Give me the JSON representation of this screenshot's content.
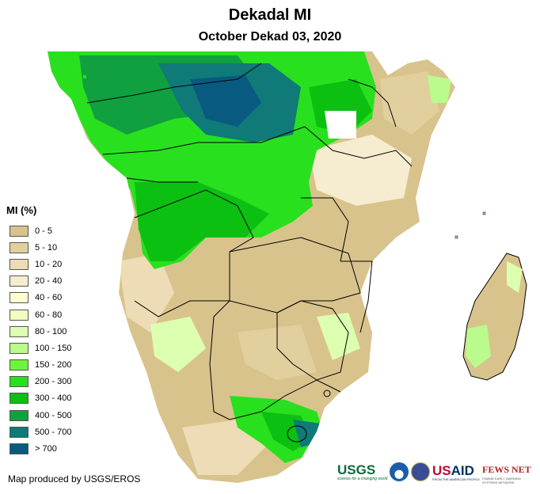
{
  "header": {
    "title": "Dekadal MI",
    "subtitle": "October Dekad 03, 2020"
  },
  "legend": {
    "title": "MI (%)",
    "items": [
      {
        "label": "0 - 5",
        "color": "#d9c38d"
      },
      {
        "label": "5 - 10",
        "color": "#e1cf9e"
      },
      {
        "label": "10 - 20",
        "color": "#eddcb5"
      },
      {
        "label": "20 - 40",
        "color": "#f6eccf"
      },
      {
        "label": "40 - 60",
        "color": "#ffffd0"
      },
      {
        "label": "60 - 80",
        "color": "#f1ffc0"
      },
      {
        "label": "80 - 100",
        "color": "#dcffb0"
      },
      {
        "label": "100 - 150",
        "color": "#b9fb8c"
      },
      {
        "label": "150 - 200",
        "color": "#6ff43c"
      },
      {
        "label": "200 - 300",
        "color": "#29e01e"
      },
      {
        "label": "300 - 400",
        "color": "#0cc012"
      },
      {
        "label": "400 - 500",
        "color": "#10a040"
      },
      {
        "label": "500 - 700",
        "color": "#0f7a78"
      },
      {
        "label": "> 700",
        "color": "#085a80"
      }
    ]
  },
  "footer": {
    "credit": "Map produced by USGS/EROS",
    "logos": {
      "usgs": "USGS",
      "usgs_tag": "science for a changing world",
      "usaid_left": "US",
      "usaid_right": "AID",
      "usaid_tag": "FROM THE AMERICAN PEOPLE",
      "fews": "FEWS NET",
      "fews_tag": "FAMINE EARLY WARNING SYSTEMS NETWORK"
    }
  }
}
